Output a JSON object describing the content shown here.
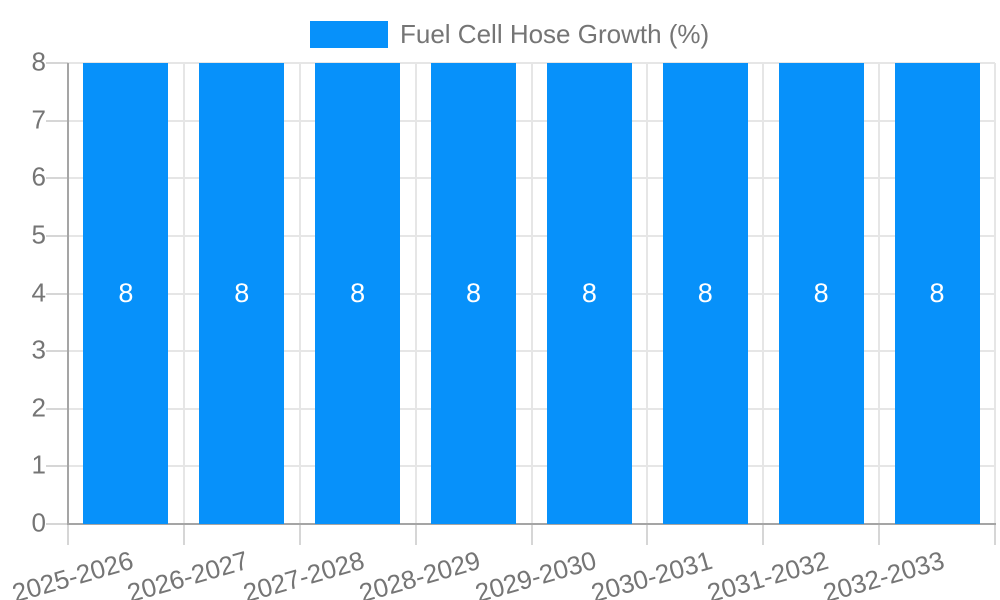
{
  "chart_data": {
    "type": "bar",
    "title": "Fuel Cell Hose Growth (%)",
    "categories": [
      "2025-2026",
      "2026-2027",
      "2027-2028",
      "2028-2029",
      "2029-2030",
      "2030-2031",
      "2031-2032",
      "2032-2033"
    ],
    "values": [
      8,
      8,
      8,
      8,
      8,
      8,
      8,
      8
    ],
    "bar_labels": [
      "8",
      "8",
      "8",
      "8",
      "8",
      "8",
      "8",
      "8"
    ],
    "xlabel": "",
    "ylabel": "",
    "ylim": [
      0,
      8
    ],
    "yticks": [
      0,
      1,
      2,
      3,
      4,
      5,
      6,
      7,
      8
    ],
    "grid": true,
    "legend_position": "top-center",
    "colors": {
      "bar": "#0791fa",
      "bar_label_text": "#ffffff",
      "axis_text": "#757575",
      "legend_text": "#757575",
      "gridline": "#e6e6e6",
      "axis_line": "#a5a5a5",
      "tick_mark": "#d6d6d6",
      "background": "#ffffff"
    }
  }
}
